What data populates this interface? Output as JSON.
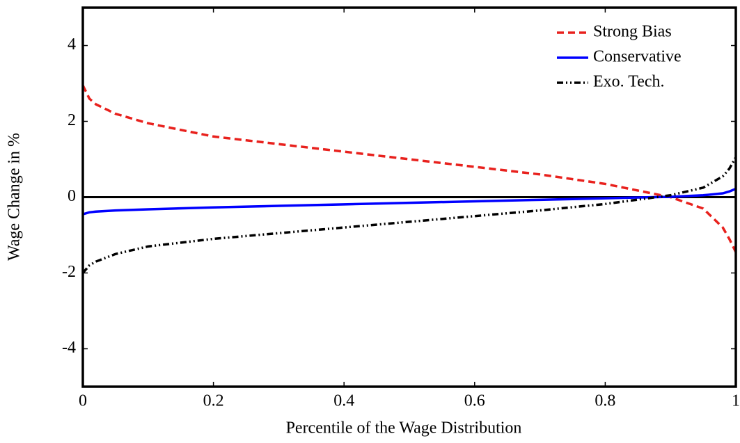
{
  "chart_data": {
    "type": "line",
    "x_label": "Percentile of the Wage Distribution",
    "y_label": "Wage Change in %",
    "x": [
      0,
      0.01,
      0.02,
      0.05,
      0.1,
      0.2,
      0.3,
      0.4,
      0.5,
      0.6,
      0.7,
      0.8,
      0.9,
      0.95,
      0.98,
      0.99,
      1
    ],
    "series": [
      {
        "name": "Strong Bias",
        "color": "#e8211d",
        "dash": "dashed",
        "values": [
          2.95,
          2.6,
          2.45,
          2.2,
          1.95,
          1.6,
          1.4,
          1.2,
          1.0,
          0.8,
          0.6,
          0.35,
          0,
          -0.3,
          -0.8,
          -1.1,
          -1.45
        ]
      },
      {
        "name": "Conservative",
        "color": "#0000ff",
        "dash": "solid",
        "values": [
          -0.45,
          -0.4,
          -0.38,
          -0.35,
          -0.32,
          -0.27,
          -0.23,
          -0.19,
          -0.15,
          -0.11,
          -0.07,
          -0.03,
          0.01,
          0.05,
          0.1,
          0.15,
          0.22
        ]
      },
      {
        "name": "Exo. Tech.",
        "color": "#000000",
        "dash": "dashdotdot",
        "values": [
          -2.0,
          -1.8,
          -1.7,
          -1.5,
          -1.3,
          -1.1,
          -0.95,
          -0.8,
          -0.65,
          -0.5,
          -0.35,
          -0.18,
          0.05,
          0.25,
          0.55,
          0.75,
          1.05
        ]
      }
    ],
    "reference_line": 0,
    "xlim": [
      0,
      1
    ],
    "ylim": [
      -5,
      5
    ],
    "xticks": [
      0,
      0.2,
      0.4,
      0.6,
      0.8,
      1
    ],
    "yticks": [
      -4,
      -2,
      0,
      2,
      4
    ],
    "legend": "top-right",
    "grid": false
  }
}
